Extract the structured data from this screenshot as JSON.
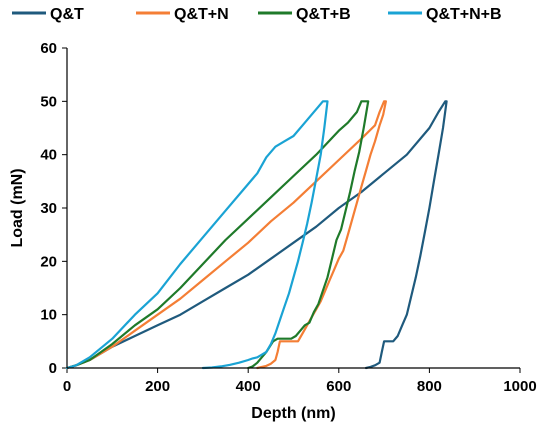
{
  "chart_data": {
    "type": "line",
    "title": "",
    "xlabel": "Depth (nm)",
    "ylabel": "Load (mN)",
    "xlim": [
      0,
      1000
    ],
    "ylim": [
      0,
      60
    ],
    "xticks": [
      "0",
      "200",
      "400",
      "600",
      "800",
      "1000"
    ],
    "yticks": [
      "0",
      "10",
      "20",
      "30",
      "40",
      "50",
      "60"
    ],
    "grid": false,
    "legend_position": "top",
    "series": [
      {
        "name": "Q&T",
        "color": "#1f5a7d",
        "x": [
          0,
          20,
          50,
          100,
          150,
          200,
          250,
          300,
          350,
          400,
          450,
          500,
          550,
          600,
          650,
          700,
          750,
          800,
          820,
          835,
          838,
          830,
          820,
          810,
          800,
          790,
          780,
          770,
          760,
          750,
          740,
          730,
          720,
          710,
          700,
          695,
          690,
          680,
          670,
          660
        ],
        "y": [
          0,
          0.5,
          1.5,
          4,
          6,
          8,
          10,
          12.5,
          15,
          17.5,
          20.5,
          23.5,
          26.5,
          30,
          33,
          36.5,
          40,
          45,
          48,
          50,
          50,
          45,
          40,
          35,
          30,
          25.5,
          21,
          17,
          13.5,
          10,
          8,
          6,
          5,
          5,
          5,
          3,
          1,
          0.5,
          0.2,
          0
        ]
      },
      {
        "name": "Q&T+N",
        "color": "#f47e35",
        "x": [
          0,
          20,
          50,
          100,
          150,
          200,
          250,
          300,
          350,
          400,
          450,
          500,
          550,
          600,
          650,
          680,
          690,
          700,
          704,
          698,
          690,
          680,
          670,
          660,
          650,
          640,
          630,
          620,
          610,
          600,
          590,
          580,
          570,
          560,
          550,
          540,
          530,
          520,
          510,
          500,
          490,
          480,
          470,
          465,
          460,
          450,
          440,
          430,
          420
        ],
        "y": [
          0,
          0.5,
          1.5,
          4,
          7,
          10,
          13,
          16.5,
          20,
          23.5,
          27.5,
          31,
          35,
          39,
          43,
          45.5,
          48,
          50,
          50,
          47.5,
          45.5,
          42.5,
          40,
          37,
          34,
          31,
          28,
          25,
          22,
          20.5,
          18.5,
          16.5,
          14.5,
          12.5,
          11,
          9.5,
          8,
          6.5,
          5,
          5,
          5,
          5,
          5,
          3,
          1.5,
          0.8,
          0.4,
          0.2,
          0
        ]
      },
      {
        "name": "Q&T+B",
        "color": "#1f7a2a",
        "x": [
          0,
          20,
          50,
          100,
          150,
          200,
          250,
          300,
          350,
          400,
          450,
          500,
          550,
          600,
          620,
          640,
          650,
          660,
          665,
          655,
          645,
          635,
          625,
          615,
          605,
          595,
          585,
          575,
          565,
          555,
          545,
          535,
          525,
          515,
          505,
          495,
          485,
          475,
          465,
          455,
          440,
          430,
          420,
          410,
          400
        ],
        "y": [
          0,
          0.5,
          1.5,
          4.5,
          8,
          11,
          15,
          19.5,
          24,
          28,
          32,
          36,
          40,
          44.5,
          46,
          48,
          50,
          50,
          50,
          45,
          40.5,
          37,
          33,
          29.5,
          26,
          24,
          20.5,
          17,
          14.5,
          12,
          10.5,
          8.5,
          8,
          7,
          6,
          5.5,
          5.5,
          5.5,
          5.5,
          5,
          3,
          2,
          1,
          0.3,
          0
        ]
      },
      {
        "name": "Q&T+N+B",
        "color": "#1aa3d4",
        "x": [
          0,
          20,
          50,
          100,
          150,
          200,
          250,
          300,
          350,
          400,
          420,
          440,
          460,
          480,
          500,
          520,
          540,
          555,
          565,
          572,
          575,
          568,
          560,
          550,
          540,
          530,
          520,
          510,
          500,
          490,
          480,
          470,
          460,
          450,
          440,
          430,
          420,
          410,
          400,
          380,
          360,
          340,
          320,
          300
        ],
        "y": [
          0,
          0.5,
          2,
          5.5,
          10,
          14,
          19.5,
          24.5,
          29.5,
          34.5,
          36.5,
          39.5,
          41.5,
          42.5,
          43.5,
          45.5,
          47.5,
          49,
          50,
          50,
          50,
          45,
          40,
          35.5,
          31,
          27,
          23.5,
          20,
          17,
          14,
          11.5,
          9,
          6.5,
          4.5,
          3,
          2.5,
          2,
          1.8,
          1.5,
          1,
          0.6,
          0.3,
          0.1,
          0
        ]
      }
    ]
  }
}
